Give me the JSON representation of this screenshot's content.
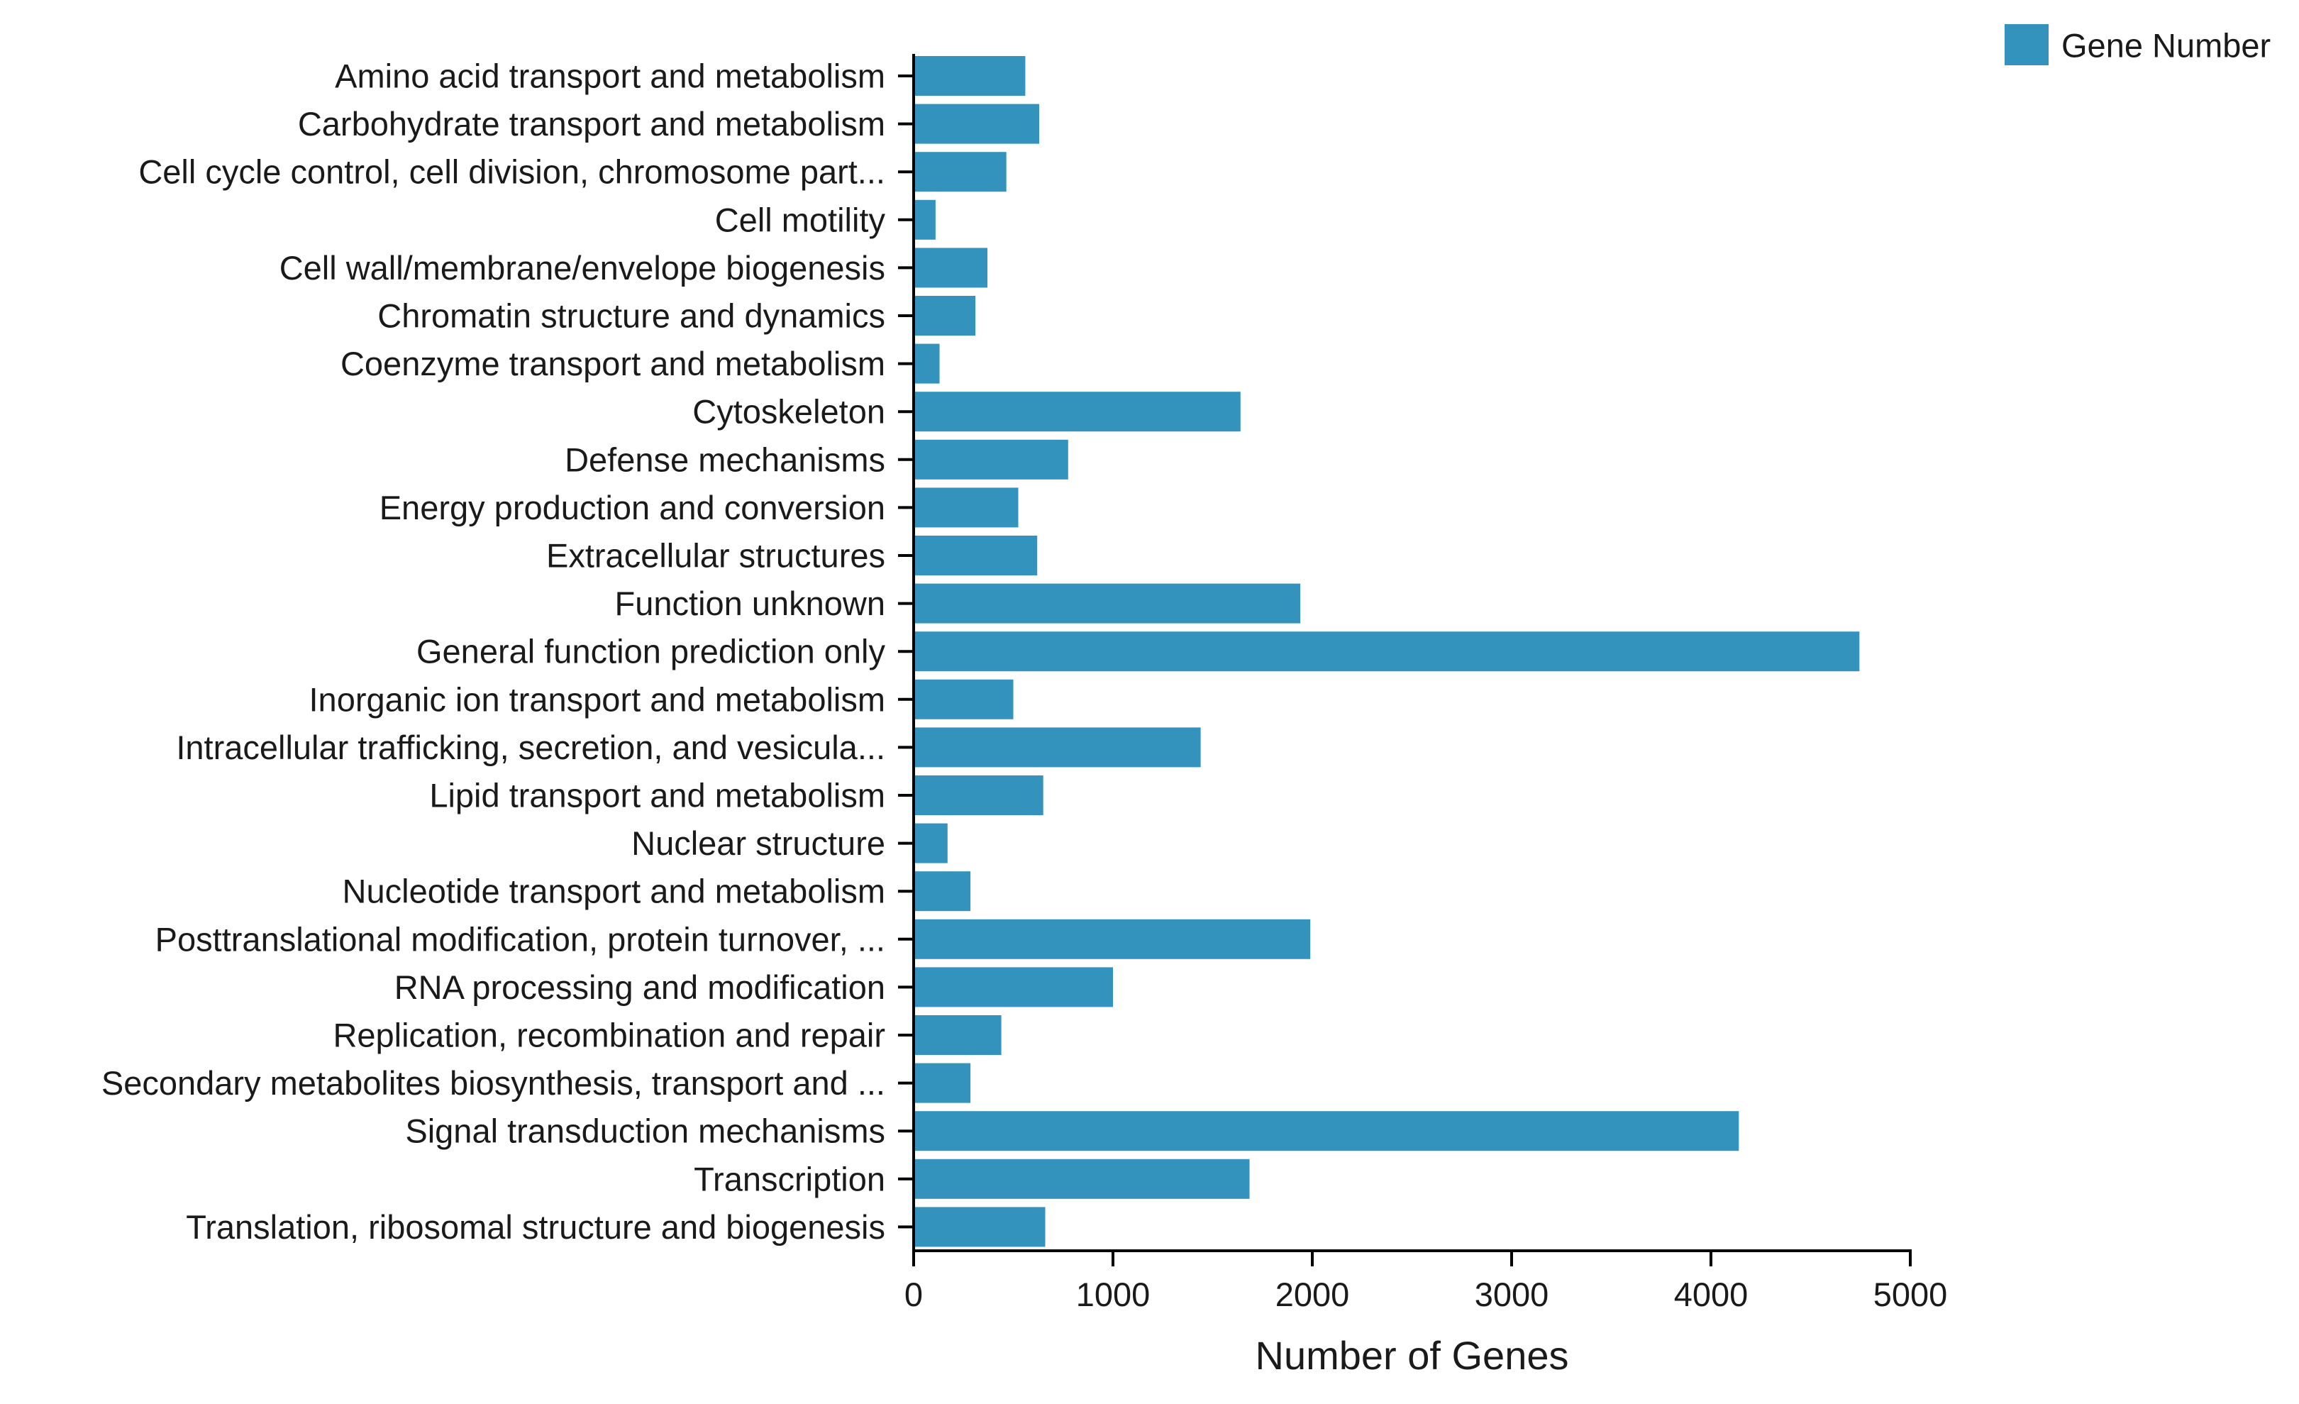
{
  "chart_data": {
    "type": "bar",
    "orientation": "horizontal",
    "categories": [
      "Amino acid transport and metabolism",
      "Carbohydrate transport and metabolism",
      "Cell cycle control, cell division, chromosome part...",
      "Cell motility",
      "Cell wall/membrane/envelope biogenesis",
      "Chromatin structure and dynamics",
      "Coenzyme transport and metabolism",
      "Cytoskeleton",
      "Defense mechanisms",
      "Energy production and conversion",
      "Extracellular structures",
      "Function unknown",
      "General function prediction only",
      "Inorganic ion transport and metabolism",
      "Intracellular trafficking, secretion, and vesicula...",
      "Lipid transport and metabolism",
      "Nuclear structure",
      "Nucleotide transport and metabolism",
      "Posttranslational modification, protein turnover, ...",
      "RNA processing and modification",
      "Replication, recombination and repair",
      "Secondary metabolites biosynthesis, transport and ...",
      "Signal transduction mechanisms",
      "Transcription",
      "Translation, ribosomal structure and biogenesis"
    ],
    "series": [
      {
        "name": "Gene Number",
        "color": "#3393bd",
        "values": [
          560,
          630,
          465,
          110,
          370,
          310,
          130,
          1640,
          775,
          525,
          620,
          1940,
          4745,
          500,
          1440,
          650,
          170,
          285,
          1990,
          1000,
          440,
          285,
          4140,
          1685,
          660
        ]
      }
    ],
    "xlabel": "Number of Genes",
    "ylabel": "",
    "xlim": [
      0,
      5000
    ],
    "xticks": [
      "0",
      "1000",
      "2000",
      "3000",
      "4000",
      "5000"
    ],
    "legend": {
      "position": "top-right",
      "label": "Gene Number"
    },
    "grid": false
  }
}
